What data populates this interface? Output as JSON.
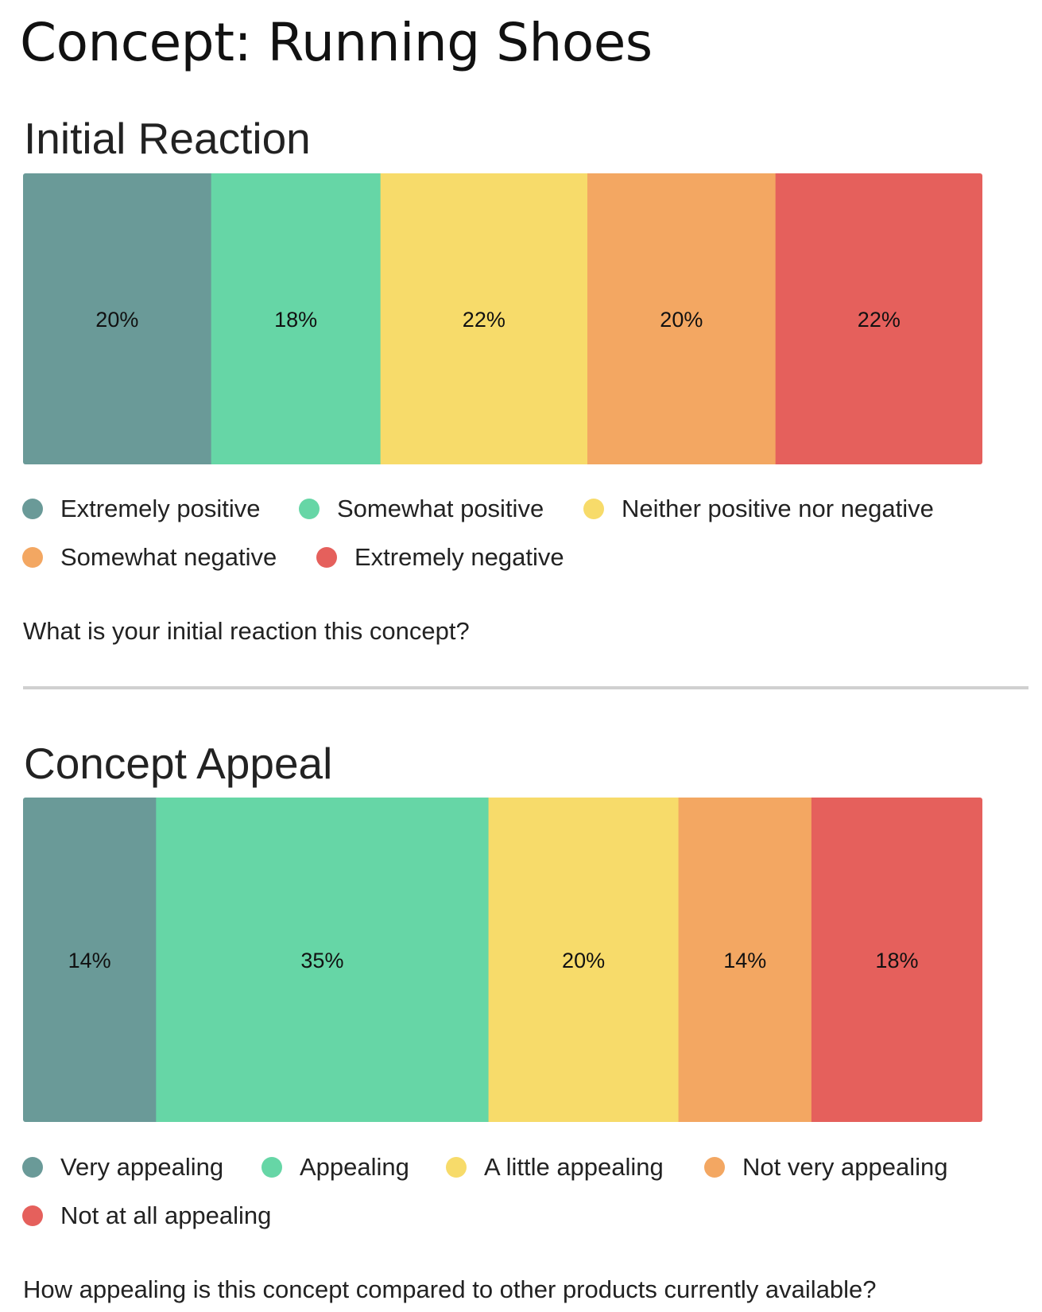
{
  "page_title": "Concept: Running Shoes",
  "sections": {
    "initial": {
      "title": "Initial Reaction",
      "question": "What is your initial reaction this concept?"
    },
    "appeal": {
      "title": "Concept Appeal",
      "question": "How appealing is this concept compared to other products currently available?"
    }
  },
  "chart_data": [
    {
      "type": "bar",
      "stacked": true,
      "orientation": "horizontal",
      "title": "Initial Reaction",
      "series": [
        {
          "name": "Extremely positive",
          "value": 20,
          "label": "20%",
          "color": "#6a9a98"
        },
        {
          "name": "Somewhat positive",
          "value": 18,
          "label": "18%",
          "color": "#66d6a6"
        },
        {
          "name": "Neither positive nor negative",
          "value": 22,
          "label": "22%",
          "color": "#f7db6a"
        },
        {
          "name": "Somewhat negative",
          "value": 20,
          "label": "20%",
          "color": "#f3a762"
        },
        {
          "name": "Extremely negative",
          "value": 22,
          "label": "22%",
          "color": "#e5605c"
        }
      ],
      "legend": "bottom",
      "grid": false
    },
    {
      "type": "bar",
      "stacked": true,
      "orientation": "horizontal",
      "title": "Concept Appeal",
      "series": [
        {
          "name": "Very appealing",
          "value": 14,
          "label": "14%",
          "color": "#6a9a98"
        },
        {
          "name": "Appealing",
          "value": 35,
          "label": "35%",
          "color": "#66d6a6"
        },
        {
          "name": "A little appealing",
          "value": 20,
          "label": "20%",
          "color": "#f7db6a"
        },
        {
          "name": "Not very appealing",
          "value": 14,
          "label": "14%",
          "color": "#f3a762"
        },
        {
          "name": "Not at all appealing",
          "value": 18,
          "label": "18%",
          "color": "#e5605c"
        }
      ],
      "legend": "bottom",
      "grid": false
    }
  ]
}
